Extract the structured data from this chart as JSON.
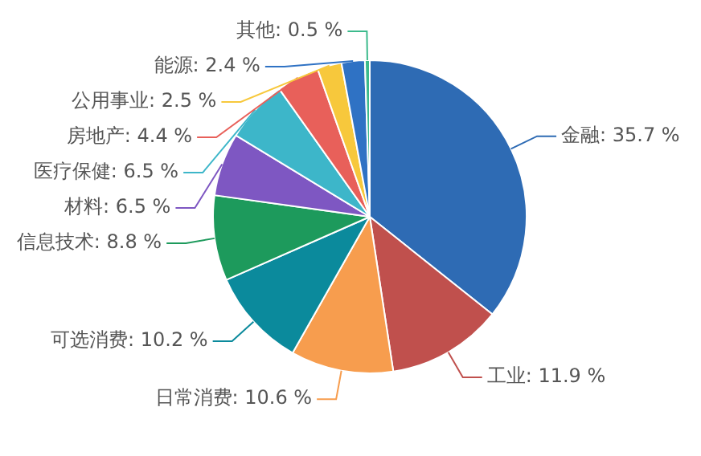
{
  "chart_data": {
    "type": "pie",
    "categories": [
      "金融",
      "工业",
      "日常消费",
      "可选消费",
      "信息技术",
      "材料",
      "医疗保健",
      "房地产",
      "公用事业",
      "能源",
      "其他"
    ],
    "values": [
      35.7,
      11.9,
      10.6,
      10.2,
      8.8,
      6.5,
      6.5,
      4.4,
      2.5,
      2.4,
      0.5
    ],
    "value_labels": [
      "35.7 %",
      "11.9 %",
      "10.6 %",
      "10.2 %",
      "8.8 %",
      "6.5 %",
      "6.5 %",
      "4.4 %",
      "2.5 %",
      "2.4 %",
      "0.5 %"
    ],
    "colors": [
      "#2e6bb4",
      "#c0504d",
      "#f79d4e",
      "#0b8a9c",
      "#1d9a5c",
      "#7e57c2",
      "#3db6c9",
      "#e8605a",
      "#f7c83c",
      "#2f72c4",
      "#3cba8c"
    ],
    "legend": false
  }
}
